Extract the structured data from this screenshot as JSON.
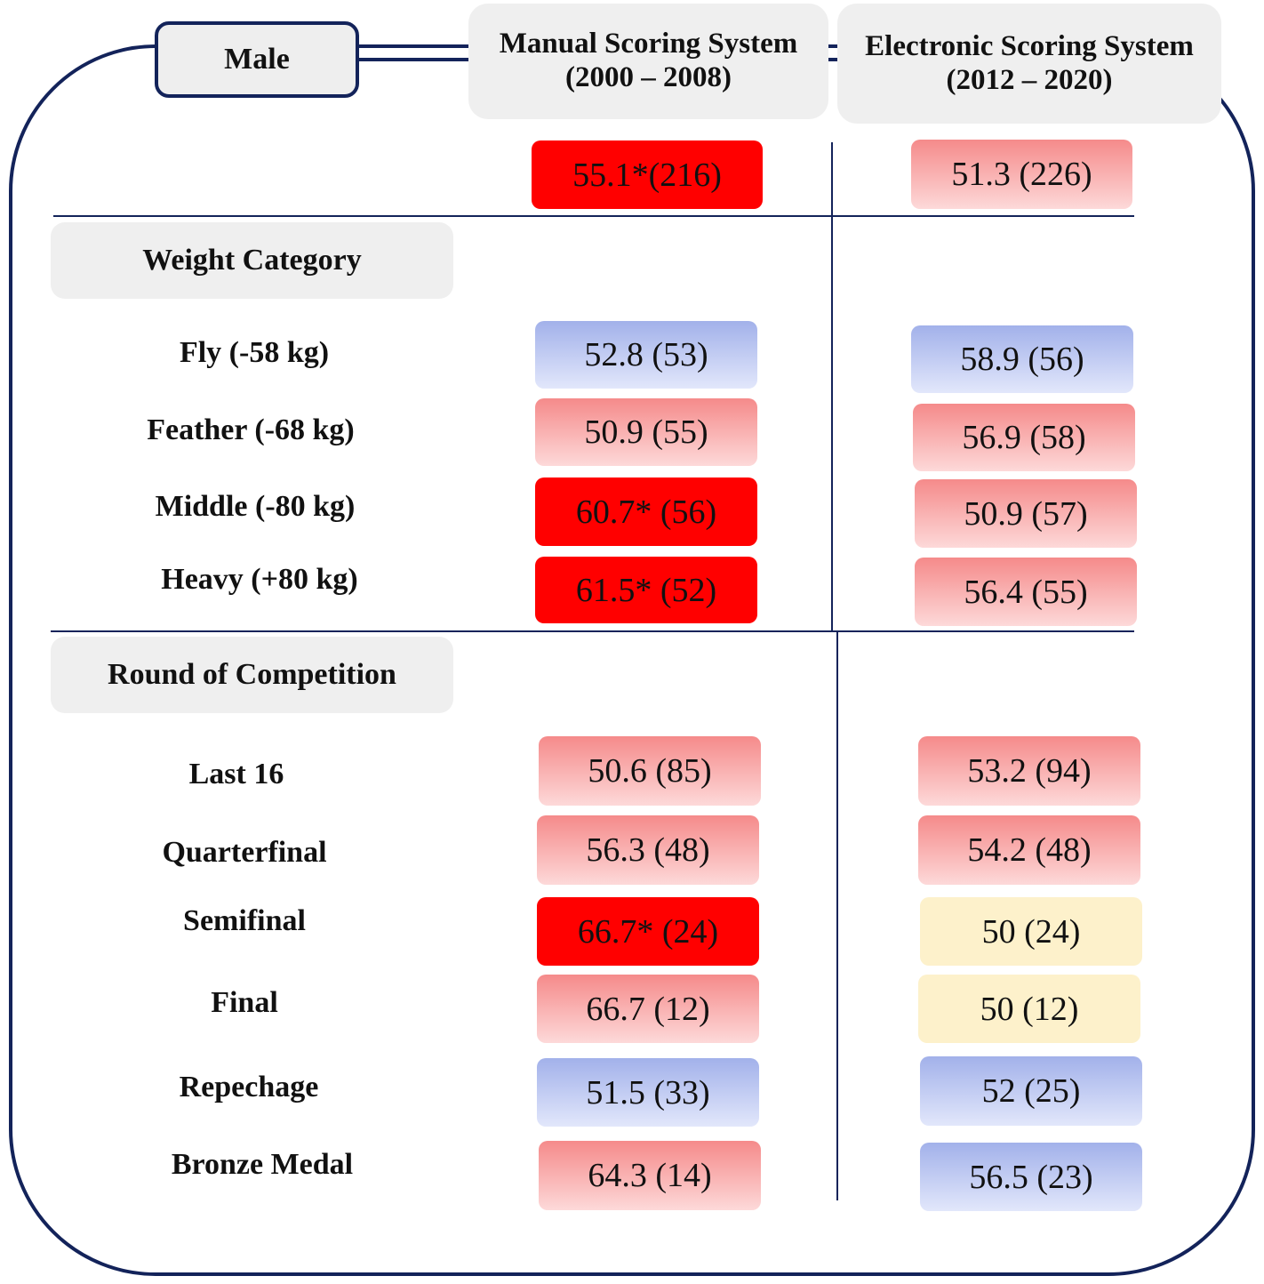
{
  "gender": "Male",
  "columns": [
    {
      "line1": "Manual Scoring System",
      "line2": "(2000 – 2008)"
    },
    {
      "line1": "Electronic Scoring System",
      "line2": "(2012 – 2020)"
    }
  ],
  "overall": {
    "manual": "55.1*(216)",
    "electronic": "51.3 (226)"
  },
  "sections": {
    "weight": {
      "title": "Weight Category",
      "rows": [
        {
          "label": "Fly (-58 kg)",
          "manual": "52.8 (53)",
          "electronic": "58.9 (56)"
        },
        {
          "label": "Feather (-68 kg)",
          "manual": "50.9 (55)",
          "electronic": "56.9 (58)"
        },
        {
          "label": "Middle (-80 kg)",
          "manual": "60.7* (56)",
          "electronic": "50.9 (57)"
        },
        {
          "label": "Heavy (+80 kg)",
          "manual": "61.5* (52)",
          "electronic": "56.4 (55)"
        }
      ]
    },
    "round": {
      "title": "Round of Competition",
      "rows": [
        {
          "label": "Last 16",
          "manual": "50.6 (85)",
          "electronic": "53.2 (94)"
        },
        {
          "label": "Quarterfinal",
          "manual": "56.3 (48)",
          "electronic": "54.2 (48)"
        },
        {
          "label": "Semifinal",
          "manual": "66.7* (24)",
          "electronic": "50 (24)"
        },
        {
          "label": "Final",
          "manual": "66.7 (12)",
          "electronic": "50 (12)"
        },
        {
          "label": "Repechage",
          "manual": "51.5 (33)",
          "electronic": "52 (25)"
        },
        {
          "label": "Bronze Medal",
          "manual": "64.3 (14)",
          "electronic": "56.5 (23)"
        }
      ]
    }
  },
  "colors": {
    "frame": "#13235a",
    "significant": "#ff0000",
    "red_scale": "#f58a8a",
    "blue_scale": "#a2b1ea",
    "neutral": "#fdf1cb",
    "header_bg": "#efefef"
  }
}
